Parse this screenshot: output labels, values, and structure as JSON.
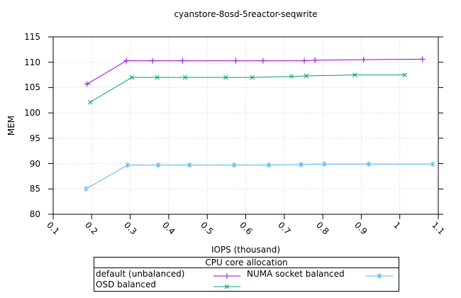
{
  "chart_data": {
    "type": "line",
    "title": "cyanstore-8osd-5reactor-seqwrite",
    "xlabel": "IOPS (thousand)",
    "ylabel": "MEM",
    "xlim": [
      0.1,
      1.1
    ],
    "ylim": [
      80,
      115
    ],
    "xtick_values": [
      0.1,
      0.2,
      0.3,
      0.4,
      0.5,
      0.6,
      0.7,
      0.8,
      0.9,
      1.0,
      1.1
    ],
    "xtick_labels": [
      "0.1",
      "0.2",
      "0.3",
      "0.4",
      "0.5",
      "0.6",
      "0.7",
      "0.8",
      "0.9",
      "1",
      "1.1"
    ],
    "ytick_values": [
      80,
      85,
      90,
      95,
      100,
      105,
      110,
      115
    ],
    "ytick_labels": [
      "80",
      "85",
      "90",
      "95",
      "100",
      "105",
      "110",
      "115"
    ],
    "grid": true,
    "legend": {
      "title": "CPU core allocation",
      "position": "below-outside",
      "columns": 2
    },
    "series": [
      {
        "name": "default (unbalanced)",
        "color": "#9400d3",
        "marker": "plus",
        "points": [
          [
            0.188,
            105.7
          ],
          [
            0.29,
            110.3
          ],
          [
            0.358,
            110.3
          ],
          [
            0.436,
            110.3
          ],
          [
            0.574,
            110.3
          ],
          [
            0.645,
            110.3
          ],
          [
            0.752,
            110.3
          ],
          [
            0.78,
            110.4
          ],
          [
            0.906,
            110.5
          ],
          [
            1.059,
            110.6
          ]
        ]
      },
      {
        "name": "OSD balanced",
        "color": "#009e73",
        "marker": "cross",
        "points": [
          [
            0.196,
            102.1
          ],
          [
            0.304,
            107.0
          ],
          [
            0.37,
            107.0
          ],
          [
            0.443,
            107.0
          ],
          [
            0.548,
            107.0
          ],
          [
            0.617,
            107.0
          ],
          [
            0.719,
            107.2
          ],
          [
            0.757,
            107.3
          ],
          [
            0.883,
            107.5
          ],
          [
            1.013,
            107.5
          ]
        ]
      },
      {
        "name": "NUMA socket balanced",
        "color": "#56b4e9",
        "marker": "asterisk",
        "points": [
          [
            0.185,
            85.0
          ],
          [
            0.293,
            89.7
          ],
          [
            0.373,
            89.7
          ],
          [
            0.454,
            89.7
          ],
          [
            0.57,
            89.7
          ],
          [
            0.66,
            89.7
          ],
          [
            0.744,
            89.8
          ],
          [
            0.804,
            89.9
          ],
          [
            0.919,
            89.9
          ],
          [
            1.086,
            89.9
          ]
        ]
      }
    ],
    "colors": {
      "text": "#000000",
      "border": "#000000",
      "grid": "#c8c8c8",
      "background": "#ffffff"
    }
  }
}
